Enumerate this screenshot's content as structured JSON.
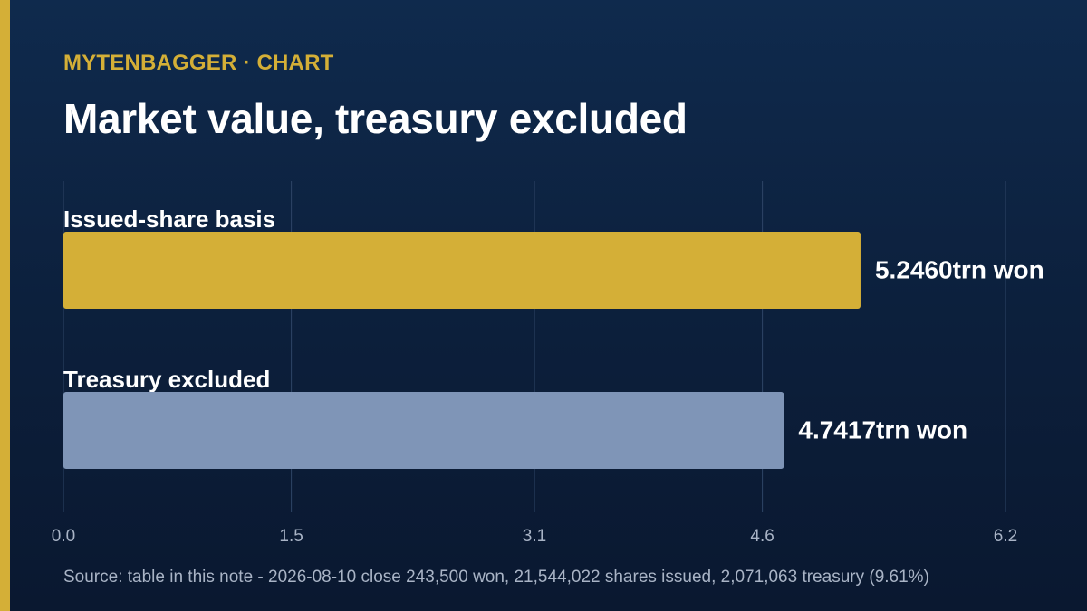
{
  "colors": {
    "background": "#0c1f3b",
    "accent": "#d4af37",
    "bar_primary": "#d4af37",
    "bar_secondary": "#7f95b7",
    "grid": "#2e4566",
    "tick_text": "#a9b4c6"
  },
  "header": {
    "kicker": "MYTENBAGGER · CHART",
    "title": "Market value, treasury excluded"
  },
  "chart_data": {
    "type": "bar",
    "orientation": "horizontal",
    "title": "Market value, treasury excluded",
    "categories": [
      "Issued-share basis",
      "Treasury excluded"
    ],
    "values": [
      5.246,
      4.7417
    ],
    "value_labels": [
      "5.2460trn won",
      "4.7417trn won"
    ],
    "xlim": [
      0,
      6.2
    ],
    "xticks": [
      0.0,
      1.5,
      3.1,
      4.6,
      6.2
    ],
    "xtick_labels": [
      "0.0",
      "1.5",
      "3.1",
      "4.6",
      "6.2"
    ],
    "grid": true,
    "legend": "none"
  },
  "footer": {
    "source": "Source: table in this note - 2026-08-10 close 243,500 won, 21,544,022 shares issued, 2,071,063 treasury (9.61%)"
  }
}
